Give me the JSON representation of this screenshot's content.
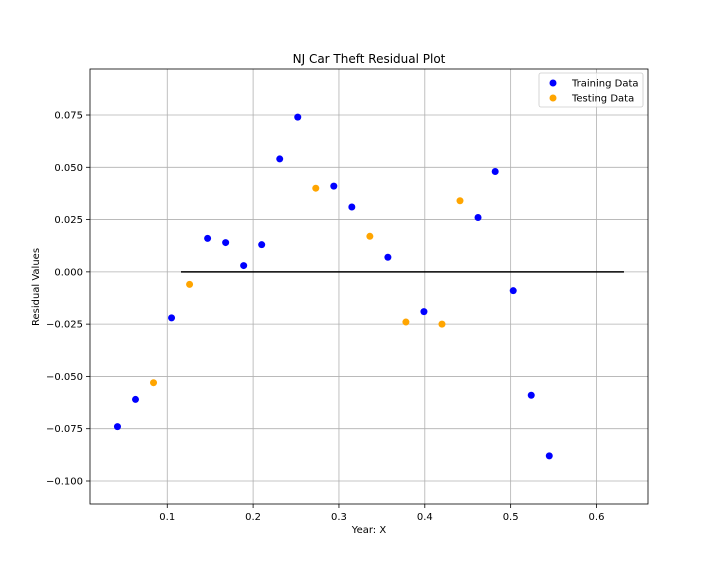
{
  "chart_data": {
    "type": "scatter",
    "title": "NJ Car Theft Residual Plot",
    "xlabel": "Year: X",
    "ylabel": "Residual Values",
    "xlim": [
      0.01,
      0.66
    ],
    "ylim": [
      -0.111,
      0.097
    ],
    "xticks": [
      0.1,
      0.2,
      0.3,
      0.4,
      0.5,
      0.6
    ],
    "xtick_labels": [
      "0.1",
      "0.2",
      "0.3",
      "0.4",
      "0.5",
      "0.6"
    ],
    "yticks": [
      0.075,
      0.05,
      0.025,
      0.0,
      -0.025,
      -0.05,
      -0.075,
      -0.1
    ],
    "ytick_labels": [
      "0.075",
      "0.050",
      "0.025",
      "0.000",
      "−0.025",
      "−0.050",
      "−0.075",
      "−0.100"
    ],
    "grid": true,
    "legend": "top-right",
    "hline": {
      "y": 0.0,
      "xmin": 0.116,
      "xmax": 0.632,
      "color": "#000000"
    },
    "series": [
      {
        "name": "Training Data",
        "color": "#0000ff",
        "x": [
          0.042,
          0.063,
          0.105,
          0.147,
          0.168,
          0.189,
          0.21,
          0.231,
          0.252,
          0.294,
          0.315,
          0.357,
          0.399,
          0.462,
          0.482,
          0.503,
          0.524,
          0.545
        ],
        "y": [
          -0.074,
          -0.061,
          -0.022,
          0.016,
          0.014,
          0.003,
          0.013,
          0.054,
          0.074,
          0.041,
          0.031,
          0.007,
          -0.019,
          0.026,
          0.048,
          -0.009,
          -0.059,
          -0.088
        ]
      },
      {
        "name": "Testing Data",
        "color": "#ffa500",
        "x": [
          0.084,
          0.126,
          0.273,
          0.336,
          0.378,
          0.42,
          0.441
        ],
        "y": [
          -0.053,
          -0.006,
          0.04,
          0.017,
          -0.024,
          -0.025,
          0.034
        ]
      }
    ]
  }
}
